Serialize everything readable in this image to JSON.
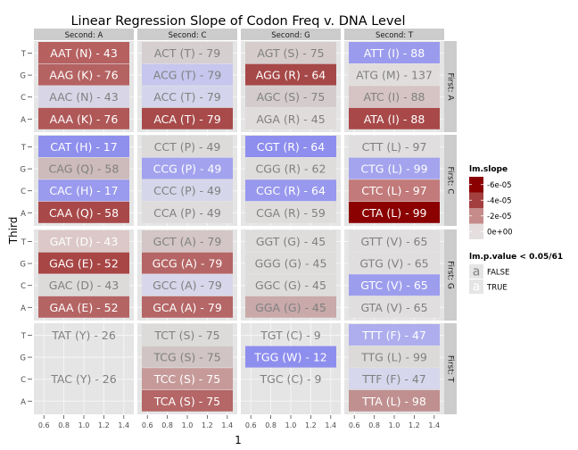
{
  "chart_data": {
    "type": "heatmap",
    "title": "Linear Regression Slope of Codon Freq v. DNA Level",
    "xlabel": "1",
    "ylabel": "Third",
    "x_ticks": [
      "0.6",
      "0.8",
      "1.0",
      "1.2",
      "1.4"
    ],
    "x_range": [
      0.5,
      1.5
    ],
    "y_ticks": [
      "T",
      "G",
      "C",
      "A"
    ],
    "col_facets": [
      "Second: A",
      "Second: C",
      "Second: G",
      "Second: T"
    ],
    "row_facets": [
      "First: A",
      "First: C",
      "First: G",
      "First: T"
    ],
    "color_legend": {
      "title": "lm.slope",
      "items": [
        {
          "label": "-6e-05",
          "color": "#8b0000"
        },
        {
          "label": "-4e-05",
          "color": "#a33f3f"
        },
        {
          "label": "-2e-05",
          "color": "#c58a8a"
        },
        {
          "label": "0e+00",
          "color": "#e5dede"
        }
      ]
    },
    "pvalue_legend": {
      "title": "lm.p.value < 0.05/61",
      "items": [
        {
          "label": "FALSE",
          "glyph": "a"
        },
        {
          "label": "TRUE",
          "glyph": "a"
        }
      ]
    },
    "panels": [
      {
        "row": 0,
        "col": 0,
        "cells": [
          {
            "label": "AAT (N) - 43",
            "fill": "#b66060",
            "sig": true
          },
          {
            "label": "AAG (K) - 76",
            "fill": "#b56262",
            "sig": true
          },
          {
            "label": "AAC (N) - 43",
            "fill": "#d8d6e6",
            "sig": false
          },
          {
            "label": "AAA (K) - 76",
            "fill": "#b05858",
            "sig": true
          }
        ]
      },
      {
        "row": 0,
        "col": 1,
        "cells": [
          {
            "label": "ACT (T) - 79",
            "fill": "#d6cfd0",
            "sig": false
          },
          {
            "label": "ACG (T) - 79",
            "fill": "#c6c6ee",
            "sig": false
          },
          {
            "label": "ACC (T) - 79",
            "fill": "#d4d4ec",
            "sig": false
          },
          {
            "label": "ACA (T) - 79",
            "fill": "#a84a4a",
            "sig": true
          }
        ]
      },
      {
        "row": 0,
        "col": 2,
        "cells": [
          {
            "label": "AGT (S) - 75",
            "fill": "#d6cccc",
            "sig": false
          },
          {
            "label": "AGG (R) - 64",
            "fill": "#a64848",
            "sig": true
          },
          {
            "label": "AGC (S) - 75",
            "fill": "#d4cccc",
            "sig": false
          },
          {
            "label": "AGA (R) - 45",
            "fill": "#e0dcdc",
            "sig": false
          }
        ]
      },
      {
        "row": 0,
        "col": 3,
        "cells": [
          {
            "label": "ATT (I) - 88",
            "fill": "#9b9bed",
            "sig": true
          },
          {
            "label": "ATG (M) - 137",
            "fill": "#e1dddd",
            "sig": false
          },
          {
            "label": "ATC (I) - 88",
            "fill": "#d6c4c4",
            "sig": false
          },
          {
            "label": "ATA (I) - 88",
            "fill": "#a84848",
            "sig": true
          }
        ]
      },
      {
        "row": 1,
        "col": 0,
        "cells": [
          {
            "label": "CAT (H) - 17",
            "fill": "#8f8fee",
            "sig": true
          },
          {
            "label": "CAG (Q) - 58",
            "fill": "#cdbaba",
            "sig": false
          },
          {
            "label": "CAC (H) - 17",
            "fill": "#9a9aee",
            "sig": true
          },
          {
            "label": "CAA (Q) - 58",
            "fill": "#a84848",
            "sig": true
          }
        ]
      },
      {
        "row": 1,
        "col": 1,
        "cells": [
          {
            "label": "CCT (P) - 49",
            "fill": "#dddada",
            "sig": false
          },
          {
            "label": "CCG (P) - 49",
            "fill": "#a2a2ee",
            "sig": true
          },
          {
            "label": "CCC (P) - 49",
            "fill": "#d6d6ea",
            "sig": false
          },
          {
            "label": "CCA (P) - 49",
            "fill": "#dedcdc",
            "sig": false
          }
        ]
      },
      {
        "row": 1,
        "col": 2,
        "cells": [
          {
            "label": "CGT (R) - 64",
            "fill": "#8e8eee",
            "sig": true
          },
          {
            "label": "CGG (R) - 62",
            "fill": "#dfdcdc",
            "sig": false
          },
          {
            "label": "CGC (R) - 64",
            "fill": "#9898ee",
            "sig": true
          },
          {
            "label": "CGA (R) - 59",
            "fill": "#dfdcdc",
            "sig": false
          }
        ]
      },
      {
        "row": 1,
        "col": 3,
        "cells": [
          {
            "label": "CTT (L) - 97",
            "fill": "#e0dede",
            "sig": false
          },
          {
            "label": "CTG (L) - 99",
            "fill": "#a3a3ee",
            "sig": true
          },
          {
            "label": "CTC (L) - 97",
            "fill": "#c27a7a",
            "sig": true
          },
          {
            "label": "CTA (L) - 99",
            "fill": "#8b0000",
            "sig": true
          }
        ]
      },
      {
        "row": 2,
        "col": 0,
        "cells": [
          {
            "label": "GAT (D) - 43",
            "fill": "#dcc8c8",
            "sig": true
          },
          {
            "label": "GAG (E) - 52",
            "fill": "#a84545",
            "sig": true
          },
          {
            "label": "GAC (D) - 43",
            "fill": "#dddada",
            "sig": false
          },
          {
            "label": "GAA (E) - 52",
            "fill": "#b56464",
            "sig": true
          }
        ]
      },
      {
        "row": 2,
        "col": 1,
        "cells": [
          {
            "label": "GCT (A) - 79",
            "fill": "#d4c6c6",
            "sig": false
          },
          {
            "label": "GCG (A) - 79",
            "fill": "#b56565",
            "sig": true
          },
          {
            "label": "GCC (A) - 79",
            "fill": "#d8d6ea",
            "sig": false
          },
          {
            "label": "GCA (A) - 79",
            "fill": "#b56666",
            "sig": true
          }
        ]
      },
      {
        "row": 2,
        "col": 2,
        "cells": [
          {
            "label": "GGT (G) - 45",
            "fill": "#dfdcdc",
            "sig": false
          },
          {
            "label": "GGG (G) - 45",
            "fill": "#dfdcdc",
            "sig": false
          },
          {
            "label": "GGC (G) - 45",
            "fill": "#dfdcdc",
            "sig": false
          },
          {
            "label": "GGA (G) - 45",
            "fill": "#c9a9a9",
            "sig": false
          }
        ]
      },
      {
        "row": 2,
        "col": 3,
        "cells": [
          {
            "label": "GTT (V) - 65",
            "fill": "#e0dede",
            "sig": false
          },
          {
            "label": "GTG (V) - 65",
            "fill": "#e0dede",
            "sig": false
          },
          {
            "label": "GTC (V) - 65",
            "fill": "#9d9dee",
            "sig": true
          },
          {
            "label": "GTA (V) - 65",
            "fill": "#e0dede",
            "sig": false
          }
        ]
      },
      {
        "row": 3,
        "col": 0,
        "cells": [
          {
            "label": "TAT (Y) - 26",
            "fill": "none",
            "sig": false
          },
          {
            "label": "",
            "fill": "none",
            "sig": false
          },
          {
            "label": "TAC (Y) - 26",
            "fill": "none",
            "sig": false
          },
          {
            "label": "",
            "fill": "none",
            "sig": false
          }
        ]
      },
      {
        "row": 3,
        "col": 1,
        "cells": [
          {
            "label": "TCT (S) - 75",
            "fill": "#dddada",
            "sig": false
          },
          {
            "label": "TCG (S) - 75",
            "fill": "#d0c4c4",
            "sig": false
          },
          {
            "label": "TCC (S) - 75",
            "fill": "#c79a9a",
            "sig": true
          },
          {
            "label": "TCA (S) - 75",
            "fill": "#b56666",
            "sig": true
          }
        ]
      },
      {
        "row": 3,
        "col": 2,
        "cells": [
          {
            "label": "TGT (C) - 9",
            "fill": "none",
            "sig": false
          },
          {
            "label": "TGG (W) - 12",
            "fill": "#8e8eee",
            "sig": true
          },
          {
            "label": "TGC (C) - 9",
            "fill": "none",
            "sig": false
          },
          {
            "label": "",
            "fill": "none",
            "sig": false
          }
        ]
      },
      {
        "row": 3,
        "col": 3,
        "cells": [
          {
            "label": "TTT (F) - 47",
            "fill": "#aeaeee",
            "sig": true
          },
          {
            "label": "TTG (L) - 99",
            "fill": "#dcd9d9",
            "sig": false
          },
          {
            "label": "TTF (F) - 47",
            "fill": "#d6d6ec",
            "sig": false
          },
          {
            "label": "TTA (L) - 98",
            "fill": "#c09090",
            "sig": true
          }
        ]
      }
    ]
  }
}
